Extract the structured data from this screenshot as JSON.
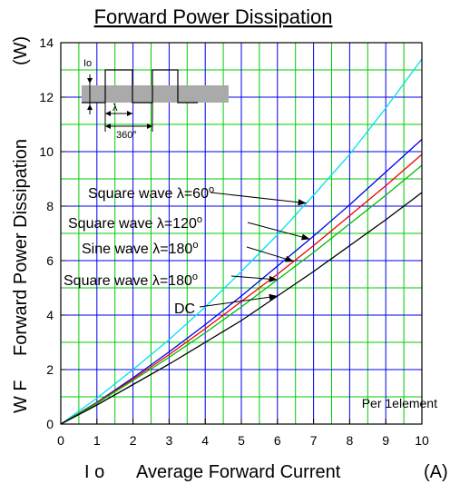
{
  "chart_data": {
    "type": "line",
    "title": "Forward Power Dissipation",
    "xlabel_left": "I o",
    "xlabel_mid": "Average Forward Current",
    "xlabel_unit": "(A)",
    "ylabel_left": "W F",
    "ylabel_mid": "Forward Power Dissipation",
    "ylabel_unit": "(W)",
    "xlim": [
      0,
      10
    ],
    "ylim": [
      0,
      14
    ],
    "x_ticks": [
      "0",
      "1",
      "2",
      "3",
      "4",
      "5",
      "6",
      "7",
      "8",
      "9",
      "10"
    ],
    "y_ticks": [
      "0",
      "2",
      "4",
      "6",
      "8",
      "10",
      "12",
      "14"
    ],
    "grid": true,
    "note": "Per 1element",
    "inset": {
      "current_label": "Io",
      "angle_label": "λ",
      "period_label": "360°"
    },
    "series": [
      {
        "name": "Square wave λ=60°",
        "color": "#00e0ee",
        "x": [
          0,
          1,
          2,
          3,
          4,
          5,
          6,
          7,
          8,
          9,
          10
        ],
        "y": [
          0,
          0.95,
          2.0,
          3.1,
          4.3,
          5.6,
          6.95,
          8.4,
          9.9,
          11.6,
          13.4
        ]
      },
      {
        "name": "Square wave λ=120°",
        "color": "#0000ee",
        "x": [
          0,
          1,
          2,
          3,
          4,
          5,
          6,
          7,
          8,
          9,
          10
        ],
        "y": [
          0,
          0.8,
          1.7,
          2.65,
          3.65,
          4.7,
          5.8,
          6.9,
          8.05,
          9.25,
          10.45
        ]
      },
      {
        "name": "Sine wave λ=180°",
        "color": "#ee0000",
        "x": [
          0,
          1,
          2,
          3,
          4,
          5,
          6,
          7,
          8,
          9,
          10
        ],
        "y": [
          0,
          0.78,
          1.65,
          2.55,
          3.5,
          4.5,
          5.5,
          6.55,
          7.65,
          8.75,
          9.9
        ]
      },
      {
        "name": "Square wave λ=180°",
        "color": "#00bb00",
        "x": [
          0,
          1,
          2,
          3,
          4,
          5,
          6,
          7,
          8,
          9,
          10
        ],
        "y": [
          0,
          0.76,
          1.6,
          2.45,
          3.35,
          4.3,
          5.3,
          6.3,
          7.35,
          8.4,
          9.5
        ]
      },
      {
        "name": "DC",
        "color": "#000000",
        "x": [
          0,
          1,
          2,
          3,
          4,
          5,
          6,
          7,
          8,
          9,
          10
        ],
        "y": [
          0,
          0.7,
          1.45,
          2.2,
          3.0,
          3.8,
          4.7,
          5.6,
          6.55,
          7.5,
          8.5
        ]
      }
    ],
    "annotations": [
      {
        "text": "Square wave λ=60",
        "sup": "o",
        "series": 0,
        "x": 6.8
      },
      {
        "text": "Square wave λ=120",
        "sup": "o",
        "series": 1,
        "x": 6.9
      },
      {
        "text": "Sine wave λ=180",
        "sup": "o",
        "series": 2,
        "x": 6.45
      },
      {
        "text": "Square wave λ=180",
        "sup": "o",
        "series": 3,
        "x": 6.0
      },
      {
        "text": "DC",
        "sup": "",
        "series": 4,
        "x": 6.0
      }
    ]
  }
}
